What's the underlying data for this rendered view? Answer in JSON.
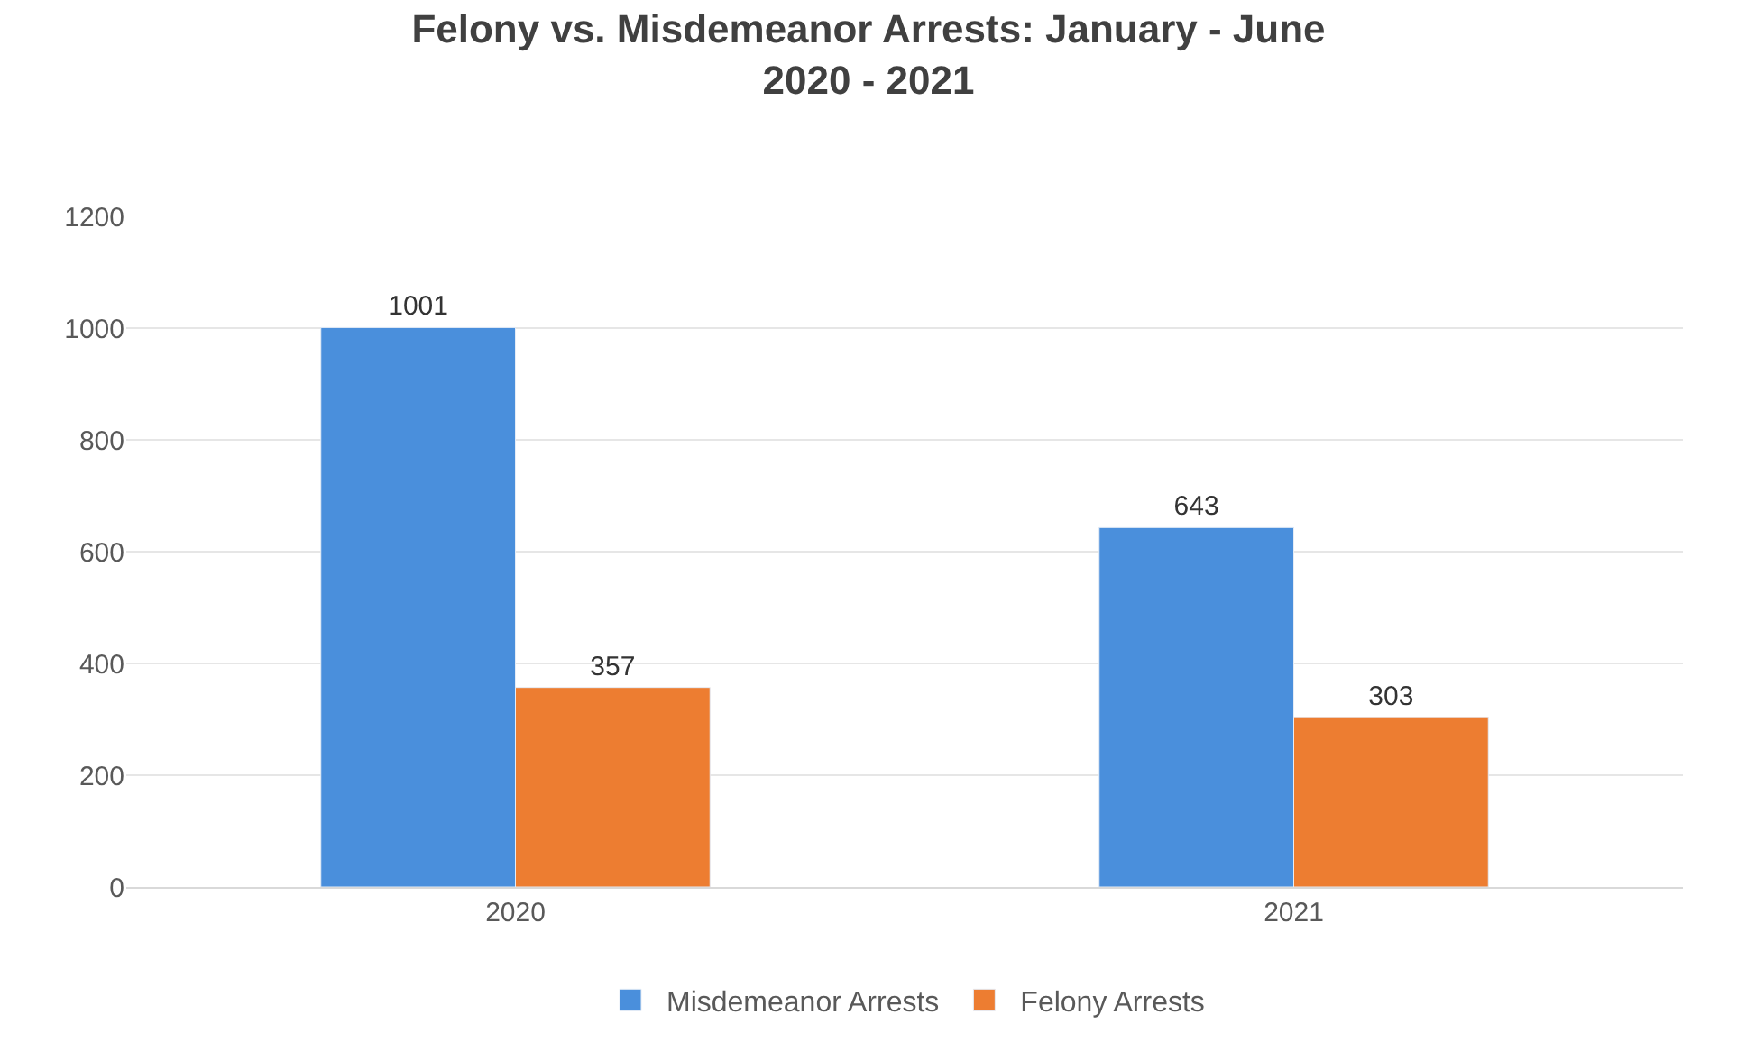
{
  "chart_data": {
    "type": "bar",
    "title": "Felony vs. Misdemeanor Arrests: January - June\n2020 - 2021",
    "categories": [
      "2020",
      "2021"
    ],
    "series": [
      {
        "name": "Misdemeanor Arrests",
        "color": "#4a8fdc",
        "values": [
          1001,
          643
        ]
      },
      {
        "name": "Felony Arrests",
        "color": "#ed7d31",
        "values": [
          357,
          303
        ]
      }
    ],
    "ylim": [
      0,
      1200
    ],
    "yticks": [
      0,
      200,
      400,
      600,
      800,
      1000,
      1200
    ],
    "grid": "y",
    "legend": "bottom",
    "data_labels": true
  }
}
